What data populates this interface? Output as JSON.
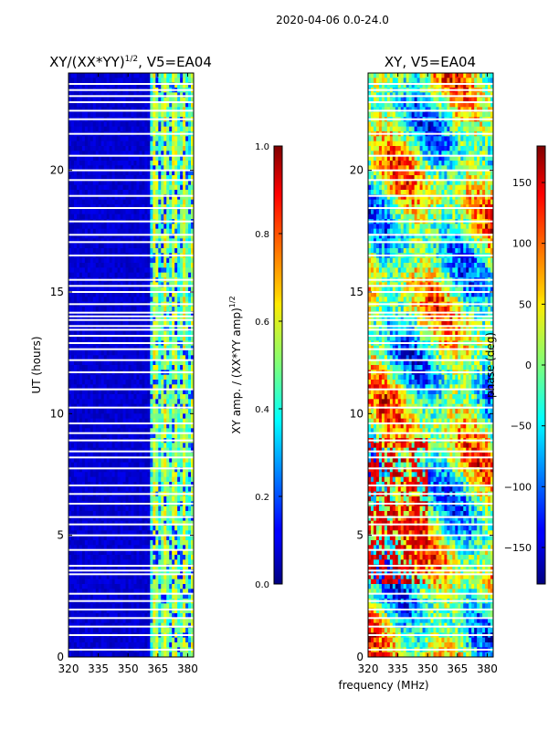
{
  "figure_title": "2020-04-06 0.0-24.0",
  "chart_data": [
    {
      "type": "heatmap",
      "title_main": "XY/(XX*YY)",
      "title_sup": "1/2",
      "title_rest": ", V5=EA04",
      "xlabel": "",
      "ylabel": "UT (hours)",
      "xlim": [
        320,
        383
      ],
      "ylim": [
        0,
        24
      ],
      "xticks": [
        320,
        335,
        350,
        365,
        380
      ],
      "yticks": [
        0,
        5,
        10,
        15,
        20
      ],
      "colorbar": {
        "label_main": "XY amp. / (XX*YY amp)",
        "label_sup": "1/2",
        "range": [
          0.0,
          1.0
        ],
        "ticks": [
          "0.0",
          "0.2",
          "0.4",
          "0.6",
          "0.8",
          "1.0"
        ]
      },
      "features": {
        "background_level": 0.05,
        "active_band_mhz": [
          361,
          383
        ],
        "active_level_range": [
          0.3,
          0.7
        ],
        "flagged_gaps_hours": [
          0.3,
          0.9,
          1.25,
          1.6,
          1.95,
          2.3,
          2.6,
          3.4,
          3.55,
          3.75,
          4.4,
          5.0,
          5.45,
          5.75,
          6.3,
          6.7,
          7.05,
          7.75,
          8.2,
          8.45,
          8.9,
          9.2,
          9.6,
          10.25,
          11.0,
          11.7,
          12.2,
          12.65,
          12.9,
          13.2,
          13.45,
          13.6,
          13.85,
          14.0,
          14.15,
          14.5,
          15.0,
          15.25,
          15.5,
          16.5,
          17.05,
          17.35,
          17.9,
          18.45,
          18.95,
          19.6,
          20.0,
          20.6,
          21.5,
          22.1,
          22.45,
          22.8,
          23.05,
          23.3,
          23.55
        ]
      }
    },
    {
      "type": "heatmap",
      "title": "XY, V5=EA04",
      "xlabel": "frequency (MHz)",
      "ylabel": "",
      "xlim": [
        320,
        383
      ],
      "ylim": [
        0,
        24
      ],
      "xticks": [
        320,
        335,
        350,
        365,
        380
      ],
      "yticks": [
        0,
        5,
        10,
        15,
        20
      ],
      "colorbar": {
        "label": "phase (deg)",
        "range": [
          -180,
          180
        ],
        "ticks": [
          "−150",
          "−100",
          "−50",
          "0",
          "50",
          "100",
          "150"
        ]
      },
      "features": {
        "flagged_gaps_hours": [
          0.3,
          0.9,
          1.25,
          1.6,
          1.95,
          2.3,
          2.6,
          3.4,
          3.55,
          3.75,
          4.4,
          5.0,
          5.45,
          5.75,
          6.3,
          6.7,
          7.05,
          7.75,
          8.2,
          8.45,
          8.9,
          9.2,
          9.6,
          10.25,
          11.0,
          11.7,
          12.2,
          12.65,
          12.9,
          13.2,
          13.45,
          13.6,
          13.85,
          14.0,
          14.15,
          14.5,
          15.0,
          15.25,
          15.5,
          16.5,
          17.05,
          17.35,
          17.9,
          18.45,
          18.95,
          19.6,
          20.0,
          20.6,
          21.5,
          22.1,
          22.45,
          22.8,
          23.05,
          23.3,
          23.55
        ]
      }
    }
  ]
}
